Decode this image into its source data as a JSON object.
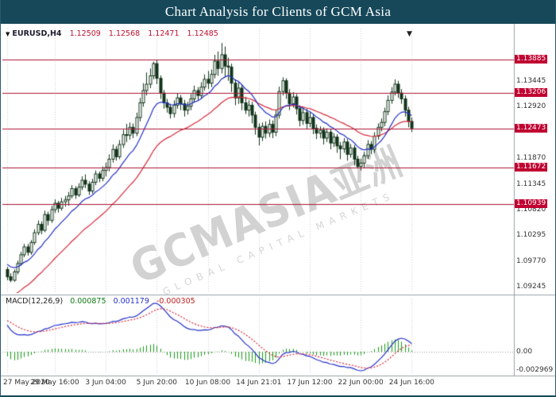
{
  "header": {
    "title": "Chart Analysis for Clients of GCM Asia"
  },
  "watermark": {
    "main": "GCMASIA",
    "cjk": "亚洲",
    "sub": "GLOBAL CAPITAL MARKETS"
  },
  "chart_data": {
    "type": "candlestick",
    "title": "EURUSD,H4",
    "symbol": "EURUSD",
    "timeframe": "H4",
    "quote": {
      "open": "1.12509",
      "high": "1.12568",
      "low": "1.12471",
      "close": "1.12485"
    },
    "ylim": [
      1.0912,
      1.144
    ],
    "y_axis_ticks": [
      "1.13970",
      "1.13445",
      "1.12920",
      "1.12395",
      "1.11870",
      "1.11345",
      "1.10820",
      "1.10295",
      "1.09770",
      "1.09245"
    ],
    "horizontal_levels": [
      "1.13885",
      "1.13206",
      "1.12473",
      "1.11672",
      "1.10939"
    ],
    "level_color": "#a81434",
    "badge_color": "#c00030",
    "candle_outline_color": "#12351b",
    "ma_fast_color": "#2230c8",
    "ma_slow_color": "#d62839",
    "x_axis_labels": [
      {
        "index": 0,
        "text": "27 May 2020"
      },
      {
        "index": 14,
        "text": "29 May 16:00"
      },
      {
        "index": 29,
        "text": "3 Jun 04:00"
      },
      {
        "index": 44,
        "text": "5 Jun 20:00"
      },
      {
        "index": 59,
        "text": "10 Jun 08:00"
      },
      {
        "index": 74,
        "text": "14 Jun 21:01"
      },
      {
        "index": 89,
        "text": "17 Jun 12:00"
      },
      {
        "index": 104,
        "text": "22 Jun 00:00"
      },
      {
        "index": 119,
        "text": "24 Jun 16:00"
      }
    ],
    "macd": {
      "label": "MACD(12,26,9)",
      "fast": 12,
      "slow": 26,
      "signal": 9,
      "values": [
        "0.000875",
        "0.001179",
        "-0.000305"
      ],
      "zero_label": "0.00",
      "min_label": "-0.002969",
      "histogram_color": "#169c16",
      "macd_color": "#2230c8",
      "signal_color": "#d62839"
    },
    "candles": [
      [
        1.096,
        1.0965,
        1.0938,
        1.0945
      ],
      [
        1.0945,
        1.0952,
        1.0934,
        1.0938
      ],
      [
        1.0938,
        1.096,
        1.0935,
        1.0955
      ],
      [
        1.0955,
        1.0978,
        1.095,
        1.0972
      ],
      [
        1.0972,
        1.0996,
        1.0968,
        1.099
      ],
      [
        1.099,
        1.1012,
        1.0985,
        1.1006
      ],
      [
        1.1006,
        1.1012,
        1.0988,
        1.0995
      ],
      [
        1.0995,
        1.102,
        1.099,
        1.1015
      ],
      [
        1.1015,
        1.1042,
        1.101,
        1.1035
      ],
      [
        1.1035,
        1.106,
        1.103,
        1.1052
      ],
      [
        1.1052,
        1.1058,
        1.1032,
        1.104
      ],
      [
        1.104,
        1.108,
        1.1036,
        1.1072
      ],
      [
        1.1072,
        1.1078,
        1.105,
        1.106
      ],
      [
        1.106,
        1.109,
        1.1055,
        1.1082
      ],
      [
        1.1082,
        1.1103,
        1.1075,
        1.1095
      ],
      [
        1.1095,
        1.11,
        1.1076,
        1.1085
      ],
      [
        1.1085,
        1.1106,
        1.108,
        1.1098
      ],
      [
        1.1098,
        1.111,
        1.1088,
        1.1102
      ],
      [
        1.1102,
        1.1118,
        1.109,
        1.111
      ],
      [
        1.111,
        1.1132,
        1.1105,
        1.1125
      ],
      [
        1.1125,
        1.113,
        1.1104,
        1.1112
      ],
      [
        1.1112,
        1.1136,
        1.1108,
        1.1128
      ],
      [
        1.1128,
        1.115,
        1.1122,
        1.1142
      ],
      [
        1.1142,
        1.1154,
        1.1126,
        1.1134
      ],
      [
        1.1134,
        1.114,
        1.1112,
        1.112
      ],
      [
        1.112,
        1.1145,
        1.1115,
        1.1138
      ],
      [
        1.1138,
        1.1162,
        1.1132,
        1.1155
      ],
      [
        1.1155,
        1.116,
        1.1138,
        1.1146
      ],
      [
        1.1146,
        1.117,
        1.114,
        1.1162
      ],
      [
        1.1162,
        1.1178,
        1.115,
        1.1168
      ],
      [
        1.1168,
        1.1195,
        1.116,
        1.1185
      ],
      [
        1.1185,
        1.1215,
        1.1178,
        1.1205
      ],
      [
        1.1205,
        1.1212,
        1.1182,
        1.119
      ],
      [
        1.119,
        1.1224,
        1.1185,
        1.1215
      ],
      [
        1.1215,
        1.1245,
        1.1208,
        1.1235
      ],
      [
        1.1235,
        1.1257,
        1.122,
        1.1234
      ],
      [
        1.1234,
        1.126,
        1.1225,
        1.125
      ],
      [
        1.125,
        1.1258,
        1.1228,
        1.1238
      ],
      [
        1.1238,
        1.128,
        1.1232,
        1.127
      ],
      [
        1.127,
        1.131,
        1.1262,
        1.13
      ],
      [
        1.13,
        1.134,
        1.1292,
        1.1325
      ],
      [
        1.1325,
        1.1362,
        1.1315,
        1.1338
      ],
      [
        1.1338,
        1.137,
        1.133,
        1.1355
      ],
      [
        1.1355,
        1.1384,
        1.1348,
        1.138
      ],
      [
        1.138,
        1.1388,
        1.1338,
        1.135
      ],
      [
        1.135,
        1.1356,
        1.1308,
        1.132
      ],
      [
        1.132,
        1.1326,
        1.1288,
        1.13
      ],
      [
        1.13,
        1.1308,
        1.128,
        1.1291
      ],
      [
        1.1291,
        1.1298,
        1.1268,
        1.1278
      ],
      [
        1.1278,
        1.1305,
        1.127,
        1.1295
      ],
      [
        1.1295,
        1.132,
        1.1288,
        1.131
      ],
      [
        1.131,
        1.1316,
        1.1285,
        1.1298
      ],
      [
        1.1298,
        1.1306,
        1.1272,
        1.1285
      ],
      [
        1.1285,
        1.1302,
        1.1276,
        1.1293
      ],
      [
        1.1293,
        1.1318,
        1.1285,
        1.1308
      ],
      [
        1.1308,
        1.1335,
        1.13,
        1.1325
      ],
      [
        1.1325,
        1.1332,
        1.1305,
        1.1315
      ],
      [
        1.1315,
        1.1342,
        1.1308,
        1.1332
      ],
      [
        1.1332,
        1.1358,
        1.1325,
        1.1348
      ],
      [
        1.1348,
        1.1365,
        1.1328,
        1.134
      ],
      [
        1.134,
        1.1368,
        1.1332,
        1.1358
      ],
      [
        1.1358,
        1.1398,
        1.135,
        1.1385
      ],
      [
        1.1385,
        1.1405,
        1.1355,
        1.137
      ],
      [
        1.137,
        1.1422,
        1.136,
        1.1398
      ],
      [
        1.1398,
        1.1415,
        1.1352,
        1.1375
      ],
      [
        1.1375,
        1.1392,
        1.1345,
        1.1373
      ],
      [
        1.1373,
        1.138,
        1.1322,
        1.134
      ],
      [
        1.134,
        1.1348,
        1.1295,
        1.131
      ],
      [
        1.131,
        1.1342,
        1.1298,
        1.133
      ],
      [
        1.133,
        1.1338,
        1.1285,
        1.13
      ],
      [
        1.13,
        1.1312,
        1.1277,
        1.1285
      ],
      [
        1.1285,
        1.1305,
        1.1272,
        1.1295
      ],
      [
        1.1295,
        1.1302,
        1.1258,
        1.1275
      ],
      [
        1.1275,
        1.1282,
        1.1235,
        1.125
      ],
      [
        1.125,
        1.1258,
        1.1213,
        1.123
      ],
      [
        1.123,
        1.126,
        1.1222,
        1.1252
      ],
      [
        1.1252,
        1.1262,
        1.1227,
        1.1238
      ],
      [
        1.1238,
        1.1266,
        1.123,
        1.1256
      ],
      [
        1.1256,
        1.1264,
        1.1228,
        1.124
      ],
      [
        1.124,
        1.1285,
        1.1232,
        1.1275
      ],
      [
        1.1275,
        1.1333,
        1.1268,
        1.1323
      ],
      [
        1.1323,
        1.1352,
        1.1315,
        1.1345
      ],
      [
        1.1345,
        1.135,
        1.1308,
        1.132
      ],
      [
        1.132,
        1.1328,
        1.1285,
        1.1298
      ],
      [
        1.1298,
        1.1322,
        1.129,
        1.1312
      ],
      [
        1.1312,
        1.1318,
        1.1276,
        1.1288
      ],
      [
        1.1288,
        1.1295,
        1.1252,
        1.1264
      ],
      [
        1.1264,
        1.129,
        1.1255,
        1.128
      ],
      [
        1.128,
        1.1288,
        1.1246,
        1.1258
      ],
      [
        1.1258,
        1.128,
        1.125,
        1.127
      ],
      [
        1.127,
        1.1276,
        1.1236,
        1.1248
      ],
      [
        1.1248,
        1.1256,
        1.1226,
        1.1238
      ],
      [
        1.1238,
        1.1252,
        1.1228,
        1.1244
      ],
      [
        1.1244,
        1.125,
        1.1215,
        1.1228
      ],
      [
        1.1228,
        1.1248,
        1.122,
        1.124
      ],
      [
        1.124,
        1.1246,
        1.1205,
        1.1218
      ],
      [
        1.1218,
        1.1238,
        1.121,
        1.123
      ],
      [
        1.123,
        1.1236,
        1.1198,
        1.1212
      ],
      [
        1.1212,
        1.122,
        1.1185,
        1.1206
      ],
      [
        1.1206,
        1.1228,
        1.1198,
        1.122
      ],
      [
        1.122,
        1.1226,
        1.1182,
        1.1195
      ],
      [
        1.1195,
        1.1216,
        1.1188,
        1.1208
      ],
      [
        1.1208,
        1.1214,
        1.1172,
        1.1185
      ],
      [
        1.1185,
        1.1192,
        1.1168,
        1.117
      ],
      [
        1.117,
        1.1186,
        1.1162,
        1.1177
      ],
      [
        1.1177,
        1.12,
        1.1168,
        1.1192
      ],
      [
        1.1192,
        1.1224,
        1.1185,
        1.1215
      ],
      [
        1.1215,
        1.1222,
        1.1195,
        1.1205
      ],
      [
        1.1205,
        1.124,
        1.1198,
        1.1232
      ],
      [
        1.1232,
        1.1258,
        1.1225,
        1.125
      ],
      [
        1.125,
        1.1268,
        1.1242,
        1.126
      ],
      [
        1.126,
        1.129,
        1.1252,
        1.1282
      ],
      [
        1.1282,
        1.1315,
        1.1275,
        1.1305
      ],
      [
        1.1305,
        1.1332,
        1.1298,
        1.1322
      ],
      [
        1.1322,
        1.1348,
        1.1315,
        1.1338
      ],
      [
        1.1338,
        1.1345,
        1.131,
        1.132
      ],
      [
        1.132,
        1.1328,
        1.1298,
        1.1308
      ],
      [
        1.1308,
        1.1315,
        1.1272,
        1.1285
      ],
      [
        1.1285,
        1.1292,
        1.125,
        1.1262
      ],
      [
        1.1262,
        1.127,
        1.124,
        1.12485
      ]
    ]
  }
}
